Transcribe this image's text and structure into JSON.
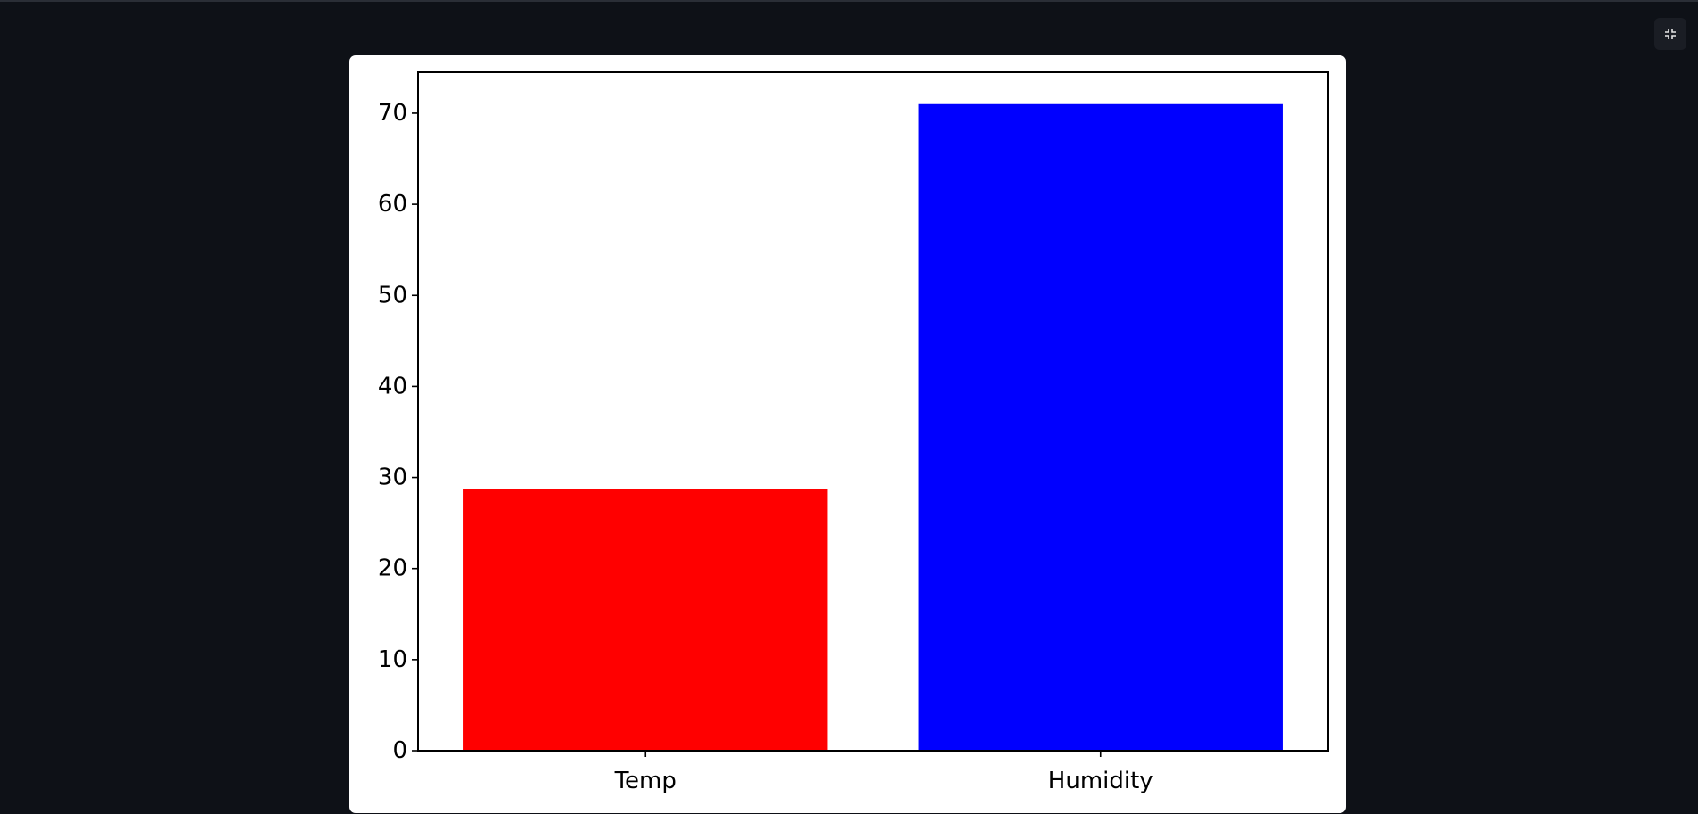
{
  "exit_fullscreen_icon": "exit-fullscreen-icon",
  "chart_data": {
    "type": "bar",
    "categories": [
      "Temp",
      "Humidity"
    ],
    "values": [
      28.7,
      71.0
    ],
    "colors": [
      "#ff0000",
      "#0000ff"
    ],
    "title": "",
    "xlabel": "",
    "ylabel": "",
    "ylim": [
      0,
      74.5
    ],
    "yticks": [
      0,
      10,
      20,
      30,
      40,
      50,
      60,
      70
    ],
    "grid": false,
    "legend": "none"
  }
}
